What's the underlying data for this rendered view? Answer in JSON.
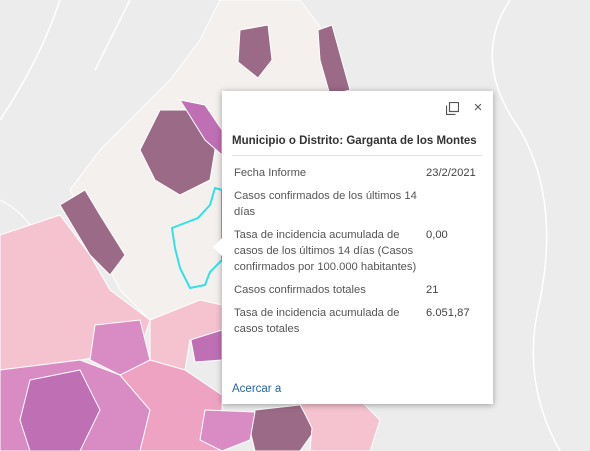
{
  "map": {
    "highlight_color": "#33e0e8",
    "palette": {
      "light": "#f3f0ee",
      "pale_pink": "#f5c2d0",
      "pink": "#eea3c3",
      "magenta": "#d98cc4",
      "purple": "#bf6fb4",
      "dark_mauve": "#9a6a86",
      "background": "#ececec"
    }
  },
  "popup": {
    "maximize_icon": "maximize-icon",
    "close_icon": "close-icon",
    "title": "Municipio o Distrito: Garganta de los Montes",
    "rows": [
      {
        "label": "Fecha Informe",
        "value": "23/2/2021"
      },
      {
        "label": "Casos confirmados de los últimos 14 días",
        "value": ""
      },
      {
        "label": "Tasa de incidencia acumulada de casos de los últimos 14 días (Casos confirmados por 100.000 habitantes)",
        "value": "0,00"
      },
      {
        "label": "Casos confirmados totales",
        "value": "21"
      },
      {
        "label": "Tasa de incidencia acumulada de casos totales",
        "value": "6.051,87"
      }
    ],
    "zoom_link": "Acercar a",
    "close_glyph": "×"
  }
}
